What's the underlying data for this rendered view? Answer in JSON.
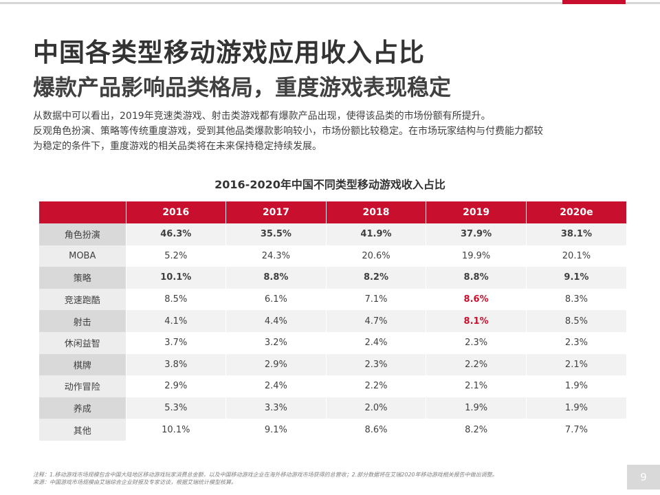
{
  "header": {
    "title": "中国各类型移动游戏应用收入占比",
    "subtitle": "爆款产品影响品类格局，重度游戏表现稳定"
  },
  "description": [
    "从数据中可以看出，2019年竞速类游戏、射击类游戏都有爆款产品出现，使得该品类的市场份额有所提升。",
    "反观角色扮演、策略等传统重度游戏，受到其他品类爆款影响较小，市场份额比较稳定。在市场玩家结构与付费能力都较",
    "为稳定的条件下，重度游戏的相关品类将在未来保持稳定持续发展。"
  ],
  "table": {
    "title": "2016-2020年中国不同类型移动游戏收入占比",
    "columns": [
      "",
      "2016",
      "2017",
      "2018",
      "2019",
      "2020e"
    ],
    "rows": [
      {
        "category": "角色扮演",
        "values": [
          "46.3%",
          "35.5%",
          "41.9%",
          "37.9%",
          "38.1%"
        ]
      },
      {
        "category": "MOBA",
        "values": [
          "5.2%",
          "24.3%",
          "20.6%",
          "19.9%",
          "20.1%"
        ]
      },
      {
        "category": "策略",
        "values": [
          "10.1%",
          "8.8%",
          "8.2%",
          "8.8%",
          "9.1%"
        ]
      },
      {
        "category": "竞速跑酷",
        "values": [
          "8.5%",
          "6.1%",
          "7.1%",
          "8.6%",
          "8.3%"
        ]
      },
      {
        "category": "射击",
        "values": [
          "4.1%",
          "4.4%",
          "4.7%",
          "8.1%",
          "8.5%"
        ]
      },
      {
        "category": "休闲益智",
        "values": [
          "3.7%",
          "3.2%",
          "2.4%",
          "2.3%",
          "2.3%"
        ]
      },
      {
        "category": "棋牌",
        "values": [
          "3.8%",
          "2.9%",
          "2.3%",
          "2.2%",
          "2.1%"
        ]
      },
      {
        "category": "动作冒险",
        "values": [
          "2.9%",
          "2.4%",
          "2.2%",
          "2.1%",
          "1.9%"
        ]
      },
      {
        "category": "养成",
        "values": [
          "5.3%",
          "3.3%",
          "2.0%",
          "1.9%",
          "1.9%"
        ]
      },
      {
        "category": "其他",
        "values": [
          "10.1%",
          "9.1%",
          "8.6%",
          "8.2%",
          "7.7%"
        ]
      }
    ]
  },
  "footer": {
    "note_line1": "注释：1.移动游戏市场规模包含中国大陆地区移动游戏玩家消费总金额，以及中国移动游戏企业在海外移动游戏市场获得的总营收；2.部分数据将在艾瑞2020年移动游戏相关报告中做出调整。",
    "note_line2": "来源：中国游戏市场规模由艾瑞综合企业财报及专家访谈，根据艾瑞统计模型核算。",
    "page_number": "9"
  },
  "colors": {
    "accent": "#c8102e",
    "category_bg": "#d9d9d9",
    "row_alt_bg": "#f2f2f2"
  }
}
